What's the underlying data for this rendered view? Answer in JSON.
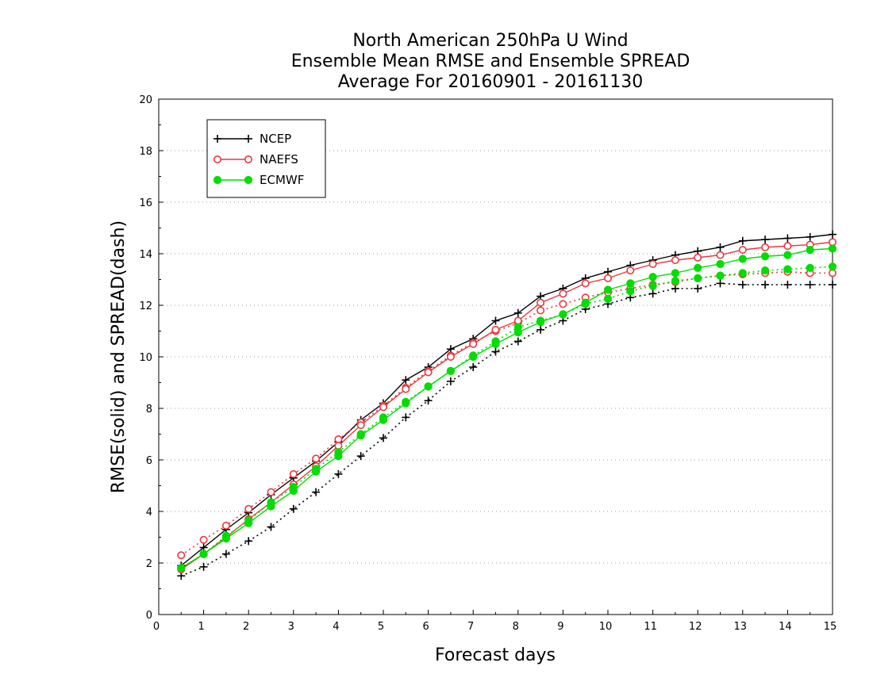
{
  "chart_data": {
    "type": "line",
    "title_lines": [
      "North American 250hPa U Wind",
      "Ensemble Mean RMSE and Ensemble SPREAD",
      "Average For 20160901 - 20161130"
    ],
    "xlabel": "Forecast days",
    "ylabel": "RMSE(solid) and SPREAD(dash)",
    "xlim": [
      0,
      15
    ],
    "ylim": [
      0,
      20
    ],
    "x_ticks": [
      0,
      1,
      2,
      3,
      4,
      5,
      6,
      7,
      8,
      9,
      10,
      11,
      12,
      13,
      14,
      15
    ],
    "y_ticks": [
      0,
      2,
      4,
      6,
      8,
      10,
      12,
      14,
      16,
      18,
      20
    ],
    "grid": "horizontal-dotted",
    "legend_position": "top-left",
    "x": [
      0.5,
      1,
      1.5,
      2,
      2.5,
      3,
      3.5,
      4,
      4.5,
      5,
      5.5,
      6,
      6.5,
      7,
      7.5,
      8,
      8.5,
      9,
      9.5,
      10,
      10.5,
      11,
      11.5,
      12,
      12.5,
      13,
      13.5,
      14,
      14.5,
      15
    ],
    "series": [
      {
        "name": "NCEP",
        "color": "#000000",
        "marker": "plus",
        "rmse": [
          1.9,
          2.6,
          3.3,
          3.95,
          4.65,
          5.3,
          5.95,
          6.7,
          7.55,
          8.2,
          9.1,
          9.6,
          10.3,
          10.7,
          11.4,
          11.7,
          12.35,
          12.65,
          13.05,
          13.3,
          13.55,
          13.75,
          13.95,
          14.1,
          14.25,
          14.5,
          14.55,
          14.6,
          14.65,
          14.75
        ],
        "spread": [
          1.5,
          1.85,
          2.35,
          2.85,
          3.4,
          4.1,
          4.75,
          5.45,
          6.15,
          6.85,
          7.65,
          8.3,
          9.05,
          9.6,
          10.2,
          10.6,
          11.05,
          11.4,
          11.85,
          12.05,
          12.3,
          12.45,
          12.65,
          12.65,
          12.85,
          12.8,
          12.8,
          12.8,
          12.8,
          12.8
        ]
      },
      {
        "name": "NAEFS",
        "color": "#e8393f",
        "marker": "open-circle",
        "rmse": [
          1.75,
          2.35,
          3.0,
          3.7,
          4.35,
          5.05,
          5.75,
          6.55,
          7.35,
          8.05,
          8.75,
          9.4,
          10.0,
          10.5,
          11.05,
          11.4,
          12.1,
          12.45,
          12.85,
          13.05,
          13.35,
          13.6,
          13.75,
          13.85,
          13.95,
          14.15,
          14.25,
          14.3,
          14.35,
          14.45
        ],
        "spread": [
          2.3,
          2.9,
          3.45,
          4.1,
          4.75,
          5.45,
          6.05,
          6.8,
          7.45,
          8.1,
          8.8,
          9.45,
          10.05,
          10.55,
          11.0,
          11.3,
          11.8,
          12.05,
          12.3,
          12.5,
          12.65,
          12.8,
          12.9,
          13.05,
          13.15,
          13.2,
          13.25,
          13.3,
          13.25,
          13.25
        ]
      },
      {
        "name": "ECMWF",
        "color": "#00dd00",
        "marker": "filled-circle",
        "rmse": [
          1.8,
          2.35,
          2.95,
          3.55,
          4.2,
          4.8,
          5.55,
          6.15,
          6.95,
          7.55,
          8.2,
          8.85,
          9.45,
          10.0,
          10.5,
          10.95,
          11.35,
          11.65,
          12.1,
          12.6,
          12.85,
          13.1,
          13.25,
          13.45,
          13.6,
          13.8,
          13.9,
          13.95,
          14.15,
          14.2
        ],
        "spread": [
          1.8,
          2.35,
          3.05,
          3.65,
          4.35,
          4.95,
          5.65,
          6.3,
          7.0,
          7.65,
          8.25,
          8.85,
          9.45,
          10.05,
          10.6,
          11.15,
          11.4,
          11.65,
          12.05,
          12.25,
          12.55,
          12.75,
          12.95,
          13.05,
          13.15,
          13.25,
          13.35,
          13.4,
          13.45,
          13.5
        ]
      }
    ]
  }
}
